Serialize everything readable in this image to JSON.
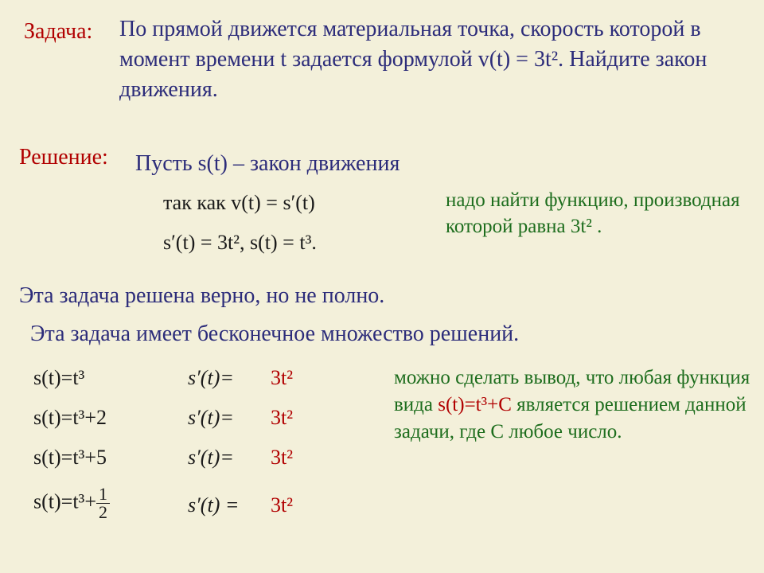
{
  "colors": {
    "background": "#f3f0da",
    "heading_red": "#b10000",
    "body_blue": "#2c2c7a",
    "note_green": "#1d6d1d",
    "formula_black": "#1a1a1a"
  },
  "font_sizes_pt": {
    "heading": 21,
    "body": 21,
    "formula": 20,
    "note": 19
  },
  "task": {
    "label": "Задача:",
    "text": "По прямой движется материальная точка, скорость которой в момент времени t задается формулой v(t) = 3t². Найдите закон движения."
  },
  "solution": {
    "label": "Решение:",
    "let": "Пусть s(t) – закон движения",
    "since": "так как  v(t) = s′(t)",
    "derive": "s′(t) = 3t²,   s(t) = t³.",
    "note": "надо найти функцию, производная которой равна 3t² ."
  },
  "comment1": "Эта задача решена верно, но не полно.",
  "comment2": "Эта задача имеет бесконечное множество решений.",
  "examples": {
    "rows": [
      {
        "left": "s(t)=t³",
        "mid": "s′(t)=",
        "right": "3t²"
      },
      {
        "left": "s(t)=t³+2",
        "mid": "s′(t)=",
        "right": "3t²"
      },
      {
        "left": "s(t)=t³+5",
        "mid": "s′(t)=",
        "right": "3t²"
      },
      {
        "left_prefix": "s(t)=t³+",
        "frac_num": "1",
        "frac_den": "2",
        "mid": "s′(t) =",
        "right": "3t²"
      }
    ]
  },
  "conclusion": {
    "pre": "можно сделать вывод, что любая функция вида ",
    "highlight": "s(t)=t³+C",
    "post": "    является решением данной задачи, где С любое число."
  }
}
